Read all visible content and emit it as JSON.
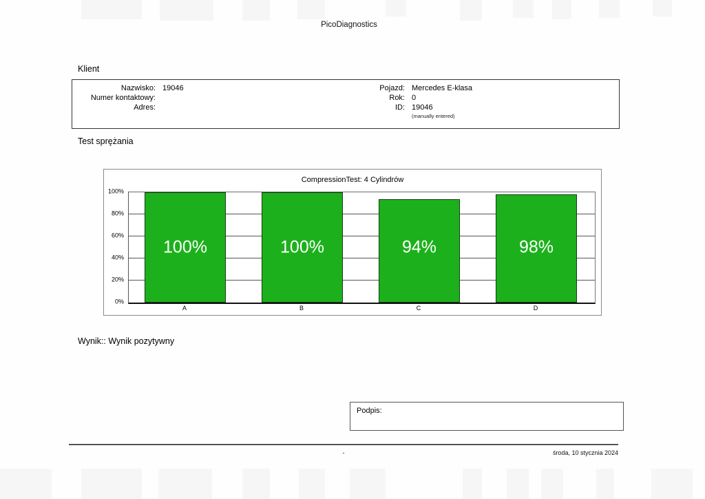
{
  "header": {
    "title": "PicoDiagnostics"
  },
  "client": {
    "section_title": "Klient",
    "left": {
      "rows": [
        {
          "label": "Nazwisko:",
          "value": "19046"
        },
        {
          "label": "Numer kontaktowy:",
          "value": ""
        },
        {
          "label": "Adres:",
          "value": ""
        }
      ]
    },
    "right": {
      "rows": [
        {
          "label": "Pojazd:",
          "value": "Mercedes E-klasa"
        },
        {
          "label": "Rok:",
          "value": "0"
        },
        {
          "label": "ID:",
          "value": "19046"
        }
      ],
      "note": "(manually entered)"
    }
  },
  "test": {
    "section_title": "Test sprężania",
    "result_line": "Wynik:: Wynik pozytywny"
  },
  "signature": {
    "label": "Podpis:"
  },
  "footer": {
    "center": "-",
    "date": "środa, 10 stycznia 2024"
  },
  "chart_data": {
    "type": "bar",
    "title": "CompressionTest: 4 Cylindrów",
    "categories": [
      "A",
      "B",
      "C",
      "D"
    ],
    "values": [
      100,
      100,
      94,
      98
    ],
    "bar_labels": [
      "100%",
      "100%",
      "94%",
      "98%"
    ],
    "xlabel": "",
    "ylabel": "",
    "ylim": [
      0,
      100
    ],
    "yticks": [
      0,
      20,
      40,
      60,
      80,
      100
    ],
    "ytick_labels": [
      "0%",
      "20%",
      "40%",
      "60%",
      "80%",
      "100%"
    ],
    "grid": true,
    "legend": false,
    "bar_color": "#1cb11c",
    "bar_border_color": "#163c16",
    "bar_label_color": "#ffffff"
  }
}
